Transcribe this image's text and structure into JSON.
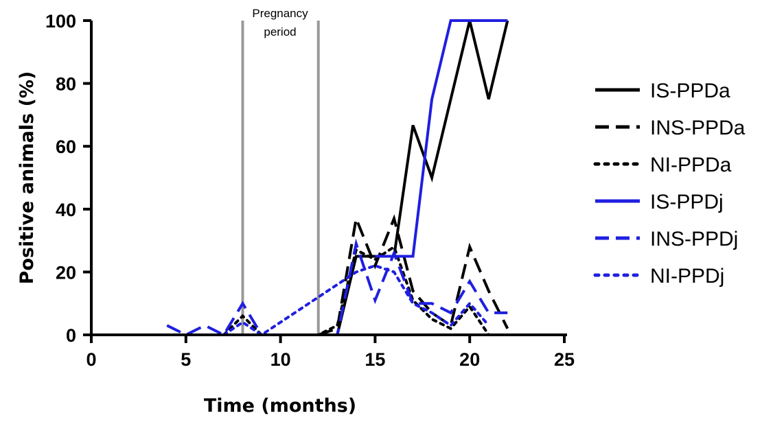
{
  "chart_data": {
    "type": "line",
    "title": "",
    "xlabel": "Time (months)",
    "ylabel": "Positive animals (%)",
    "xlim": [
      0,
      25
    ],
    "ylim": [
      0,
      100
    ],
    "xticks": [
      0,
      5,
      10,
      15,
      20,
      25
    ],
    "yticks": [
      0,
      20,
      40,
      60,
      80,
      100
    ],
    "grid": false,
    "legend_position": "right",
    "annotation": {
      "lines": [
        "Pregnancy",
        "period"
      ],
      "x_start": 8,
      "x_end": 12,
      "color": "#999999"
    },
    "series": [
      {
        "name": "IS-PPDa",
        "color": "#000000",
        "dash": "solid",
        "points": [
          [
            13,
            0
          ],
          [
            14,
            25
          ],
          [
            15,
            25
          ],
          [
            16,
            25
          ],
          [
            17,
            66.7
          ],
          [
            18,
            50
          ],
          [
            19,
            75
          ],
          [
            20,
            100
          ],
          [
            21,
            75
          ],
          [
            22,
            100
          ]
        ]
      },
      {
        "name": "INS-PPDa",
        "color": "#000000",
        "dash": "dashed",
        "points": [
          [
            12,
            0
          ],
          [
            13,
            2
          ],
          [
            14,
            37
          ],
          [
            15,
            22
          ],
          [
            16,
            37
          ],
          [
            17,
            14
          ],
          [
            18,
            7
          ],
          [
            19,
            3
          ],
          [
            20,
            28
          ],
          [
            21,
            14
          ],
          [
            22,
            2
          ]
        ]
      },
      {
        "name": "NI-PPDa",
        "color": "#000000",
        "dash": "dotted",
        "points": [
          [
            7,
            0
          ],
          [
            8,
            6
          ],
          [
            9,
            0
          ],
          [
            12,
            0
          ],
          [
            13,
            3
          ],
          [
            14,
            27
          ],
          [
            15,
            24
          ],
          [
            16,
            28
          ],
          [
            17,
            11
          ],
          [
            18,
            5
          ],
          [
            19,
            2
          ],
          [
            20,
            9
          ],
          [
            21,
            0
          ]
        ]
      },
      {
        "name": "IS-PPDj",
        "color": "#1f1fe0",
        "dash": "solid",
        "points": [
          [
            15,
            25
          ],
          [
            16,
            25
          ],
          [
            17,
            25
          ],
          [
            18,
            75
          ],
          [
            19,
            100
          ],
          [
            20,
            100
          ],
          [
            21,
            100
          ],
          [
            22,
            100
          ]
        ]
      },
      {
        "name": "INS-PPDj",
        "color": "#1f1fe0",
        "dash": "dashed",
        "points": [
          [
            4,
            3
          ],
          [
            5,
            0
          ],
          [
            6,
            3
          ],
          [
            7,
            0
          ],
          [
            8,
            10
          ],
          [
            9,
            0
          ],
          [
            12,
            0
          ],
          [
            13,
            0
          ],
          [
            14,
            29
          ],
          [
            15,
            11
          ],
          [
            16,
            26
          ],
          [
            17,
            10
          ],
          [
            18,
            10
          ],
          [
            19,
            7
          ],
          [
            20,
            17
          ],
          [
            21,
            7
          ],
          [
            22,
            7
          ]
        ]
      },
      {
        "name": "NI-PPDj",
        "color": "#1f1fe0",
        "dash": "dotted",
        "points": [
          [
            7,
            0
          ],
          [
            8,
            4
          ],
          [
            9,
            0
          ],
          [
            14,
            20
          ],
          [
            15,
            22
          ],
          [
            16,
            20
          ],
          [
            17,
            10
          ],
          [
            18,
            7
          ],
          [
            19,
            3
          ],
          [
            20,
            10
          ],
          [
            21,
            3
          ]
        ]
      }
    ]
  }
}
